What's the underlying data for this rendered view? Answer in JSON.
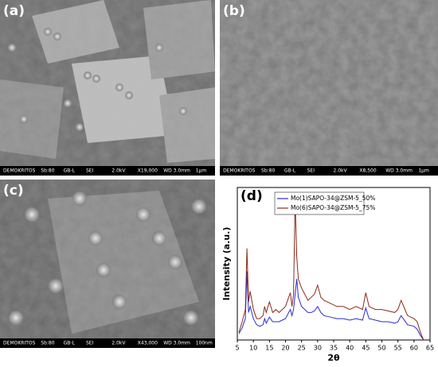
{
  "panels": [
    {
      "label": "(a)",
      "info_bar": [
        "DEMOKRITOS",
        "Sb:80",
        "GB-L",
        "SEI",
        "2.0kV",
        "X19,000",
        "WD 3.0mm",
        "1μm"
      ]
    },
    {
      "label": "(b)",
      "info_bar": [
        "DEMOKRITOS",
        "Sb:80",
        "GB-L",
        "SEI",
        "2.0kV",
        "X8,500",
        "WD 3.0mm",
        "1μm"
      ]
    },
    {
      "label": "(c)",
      "info_bar": [
        "DEMOKRITOS",
        "Sb:80",
        "GB-L",
        "SEI",
        "2.0kV",
        "X43,000",
        "WD 3.0mm",
        "100nm"
      ]
    }
  ],
  "chart_data": {
    "type": "line",
    "label": "(d)",
    "x_label": "2θ",
    "y_label": "Intensity (a.u.)",
    "x": [
      5.5,
      6.5,
      7.5,
      8,
      8.5,
      9,
      10,
      11,
      12,
      13,
      13.5,
      14,
      15,
      16,
      17,
      18,
      19,
      20,
      21,
      21.5,
      22,
      22.5,
      23,
      23.5,
      24,
      25,
      26,
      27,
      28,
      29,
      30,
      31,
      32,
      34,
      36,
      38,
      40,
      42,
      44,
      45,
      46,
      48,
      50,
      52,
      54,
      55,
      56,
      58,
      60,
      61,
      62,
      63
    ],
    "series": [
      {
        "name": "Mo(1)SAPO-34@ZSM-5_50%",
        "color": "#2b2bd0",
        "values": [
          4,
          8,
          14,
          45,
          18,
          22,
          14,
          10,
          9,
          10,
          14,
          11,
          15,
          12,
          12,
          12,
          13,
          14,
          18,
          20,
          16,
          20,
          30,
          40,
          28,
          22,
          20,
          18,
          18,
          19,
          22,
          18,
          16,
          15,
          14,
          14,
          13,
          14,
          13,
          21,
          14,
          13,
          12,
          12,
          11,
          12,
          16,
          10,
          9,
          7,
          3,
          0
        ]
      },
      {
        "name": "Mo(6)SAPO-34@ZSM-5_75%",
        "color": "#8b2a1a",
        "values": [
          5,
          12,
          20,
          60,
          25,
          32,
          20,
          14,
          14,
          16,
          22,
          18,
          25,
          18,
          20,
          18,
          20,
          22,
          28,
          31,
          22,
          30,
          92,
          55,
          40,
          34,
          30,
          26,
          28,
          30,
          36,
          28,
          26,
          24,
          22,
          22,
          20,
          22,
          20,
          31,
          22,
          20,
          20,
          19,
          18,
          20,
          26,
          16,
          14,
          12,
          5,
          0
        ]
      }
    ],
    "xlim": [
      5,
      65
    ],
    "xticks": [
      5,
      10,
      15,
      20,
      25,
      30,
      35,
      40,
      45,
      50,
      55,
      60,
      65
    ],
    "ylim": [
      0,
      100
    ],
    "legend": "upper left"
  }
}
